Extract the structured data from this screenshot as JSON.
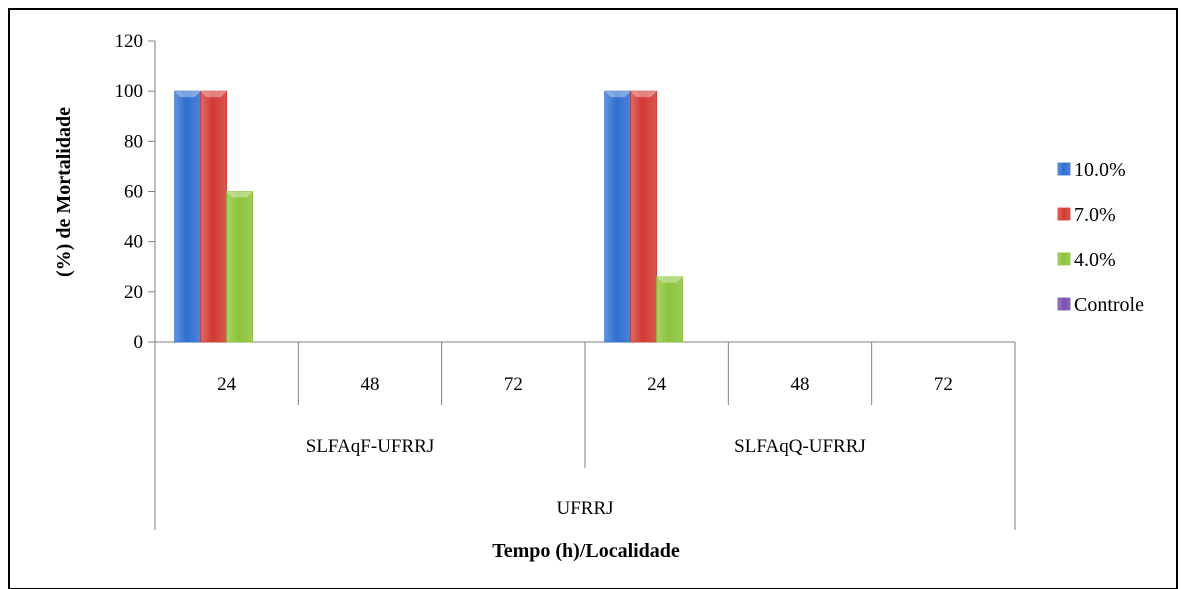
{
  "chart_data": {
    "type": "bar",
    "title": "",
    "ylabel": "(%) de Mortalidade",
    "xlabel": "Tempo (h)/Localidade",
    "ylim": [
      0,
      120
    ],
    "yticks": [
      0,
      20,
      40,
      60,
      80,
      100,
      120
    ],
    "categories": [
      "24",
      "48",
      "72",
      "24",
      "48",
      "72"
    ],
    "groups": [
      "SLFAqF-UFRRJ",
      "SLFAqQ-UFRRJ"
    ],
    "supergroup": "UFRRJ",
    "series": [
      {
        "name": "10.0%",
        "color": "#2e6fd1",
        "values": [
          100,
          0,
          0,
          100,
          0,
          0
        ]
      },
      {
        "name": "7.0%",
        "color": "#d23a34",
        "values": [
          100,
          0,
          0,
          100,
          0,
          0
        ]
      },
      {
        "name": "4.0%",
        "color": "#8cc33a",
        "values": [
          60,
          0,
          0,
          26,
          0,
          0
        ]
      },
      {
        "name": "Controle",
        "color": "#7a4fb0",
        "values": [
          0,
          0,
          0,
          0,
          0,
          0
        ]
      }
    ],
    "legend_position": "right",
    "grid": false
  }
}
